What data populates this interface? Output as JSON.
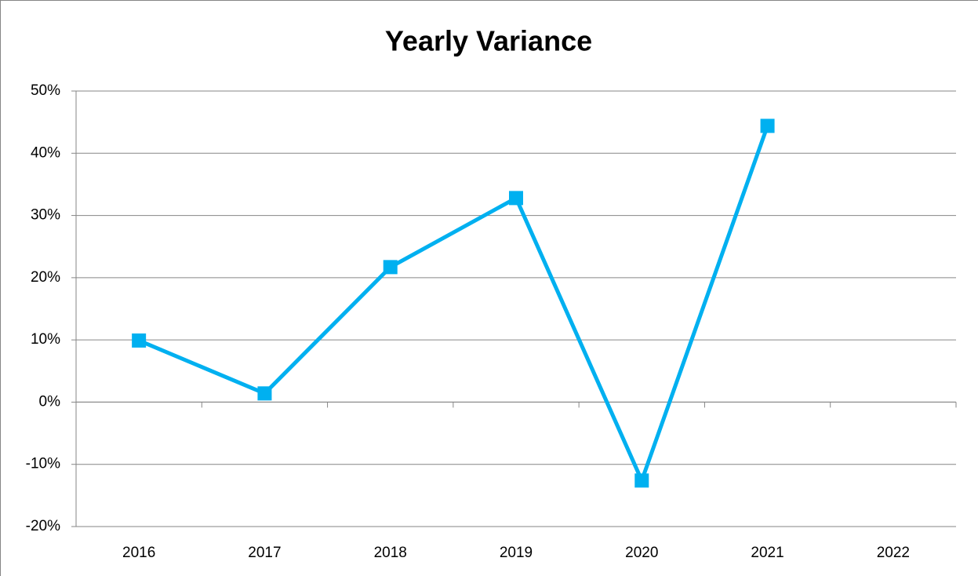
{
  "chart_data": {
    "type": "line",
    "title": "Yearly Variance",
    "categories": [
      "2016",
      "2017",
      "2018",
      "2019",
      "2020",
      "2021",
      "2022"
    ],
    "series": [
      {
        "name": "Yearly Variance",
        "color": "#00b0f0",
        "values": [
          9.9,
          1.4,
          21.7,
          32.8,
          -12.6,
          44.4,
          null
        ]
      }
    ],
    "ylim": [
      -20,
      50
    ],
    "yticks": [
      {
        "value": -20,
        "label": "-20%"
      },
      {
        "value": -10,
        "label": "-10%"
      },
      {
        "value": 0,
        "label": "0%"
      },
      {
        "value": 10,
        "label": "10%"
      },
      {
        "value": 20,
        "label": "20%"
      },
      {
        "value": 30,
        "label": "30%"
      },
      {
        "value": 40,
        "label": "40%"
      },
      {
        "value": 50,
        "label": "50%"
      }
    ],
    "grid": true
  }
}
